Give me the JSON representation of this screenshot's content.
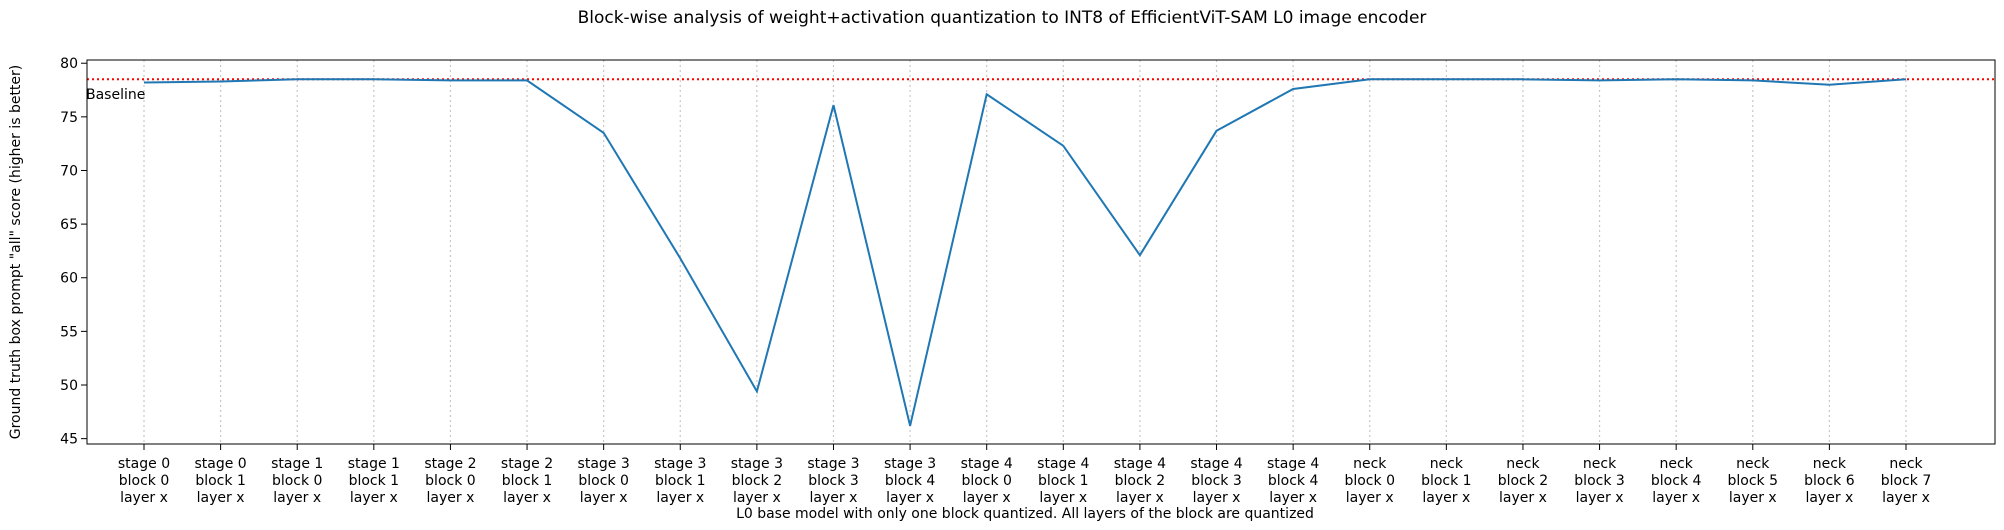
{
  "chart_data": {
    "type": "line",
    "title": "Block-wise analysis of weight+activation quantization to INT8 of EfficientViT-SAM L0 image encoder",
    "xlabel": "L0 base model with only one block quantized. All layers of the block are quantized",
    "ylabel": "Ground truth box prompt \"all\" score (higher is better)",
    "ylim": [
      44.5,
      80.3
    ],
    "yticks": [
      45,
      50,
      55,
      60,
      65,
      70,
      75,
      80
    ],
    "grid": "vertical-dotted",
    "categories": [
      [
        "stage 0",
        "block 0",
        "layer x"
      ],
      [
        "stage 0",
        "block 1",
        "layer x"
      ],
      [
        "stage 1",
        "block 0",
        "layer x"
      ],
      [
        "stage 1",
        "block 1",
        "layer x"
      ],
      [
        "stage 2",
        "block 0",
        "layer x"
      ],
      [
        "stage 2",
        "block 1",
        "layer x"
      ],
      [
        "stage 3",
        "block 0",
        "layer x"
      ],
      [
        "stage 3",
        "block 1",
        "layer x"
      ],
      [
        "stage 3",
        "block 2",
        "layer x"
      ],
      [
        "stage 3",
        "block 3",
        "layer x"
      ],
      [
        "stage 3",
        "block 4",
        "layer x"
      ],
      [
        "stage 4",
        "block 0",
        "layer x"
      ],
      [
        "stage 4",
        "block 1",
        "layer x"
      ],
      [
        "stage 4",
        "block 2",
        "layer x"
      ],
      [
        "stage 4",
        "block 3",
        "layer x"
      ],
      [
        "stage 4",
        "block 4",
        "layer x"
      ],
      [
        "neck",
        "block 0",
        "layer x"
      ],
      [
        "neck",
        "block 1",
        "layer x"
      ],
      [
        "neck",
        "block 2",
        "layer x"
      ],
      [
        "neck",
        "block 3",
        "layer x"
      ],
      [
        "neck",
        "block 4",
        "layer x"
      ],
      [
        "neck",
        "block 5",
        "layer x"
      ],
      [
        "neck",
        "block 6",
        "layer x"
      ],
      [
        "neck",
        "block 7",
        "layer x"
      ]
    ],
    "series": [
      {
        "values": [
          78.2,
          78.3,
          78.5,
          78.5,
          78.4,
          78.4,
          73.5,
          61.8,
          49.4,
          76.1,
          46.2,
          77.1,
          72.3,
          62.1,
          73.7,
          77.6,
          78.5,
          78.5,
          78.5,
          78.4,
          78.5,
          78.4,
          78.0,
          78.5
        ],
        "color": "#1f77b4"
      }
    ],
    "baseline": {
      "label": "Baseline",
      "value": 78.5,
      "color": "#ff0000",
      "style": "dotted"
    },
    "colors": {
      "gridline": "#c8c8c8",
      "axis": "#000000"
    }
  }
}
